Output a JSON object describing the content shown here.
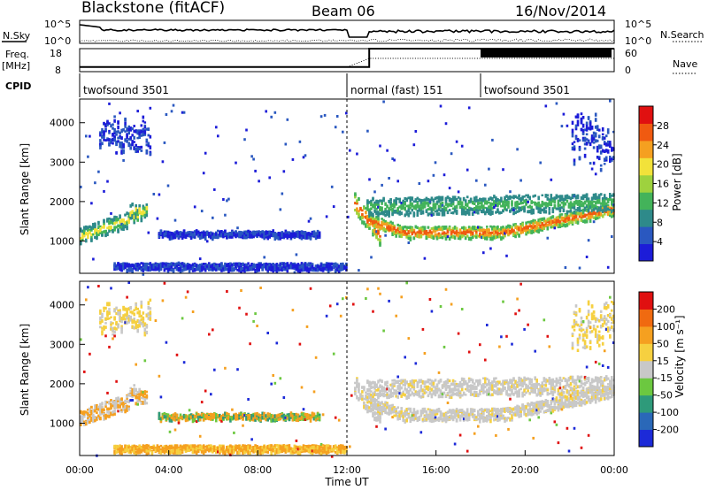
{
  "header": {
    "station": "Blackstone (fitACF)",
    "beam": "Beam 06",
    "date": "16/Nov/2014"
  },
  "labels": {
    "nsky": "N.Sky",
    "nsearch": "N.Search",
    "freq": "Freq.",
    "freq_unit": "[MHz]",
    "nave": "Nave",
    "cpid": "CPID",
    "slant_range": "Slant Range [km]",
    "time_axis": "Time UT",
    "power_label": "Power [dB]",
    "velocity_label": "Velocity [m s⁻¹]"
  },
  "cpid_segments": [
    {
      "name": "twofsound 3501",
      "start_h": 0,
      "end_h": 12
    },
    {
      "name": "normal (fast) 151",
      "start_h": 12,
      "end_h": 18
    },
    {
      "name": "twofsound 3501",
      "start_h": 18,
      "end_h": 24
    }
  ],
  "noise_panel": {
    "left_ticks": [
      "10^5",
      "10^0"
    ],
    "right_ticks": [
      "10^5",
      "10^0"
    ]
  },
  "freq_panel": {
    "left_ticks": [
      18,
      8
    ],
    "right_ticks": [
      60,
      0
    ],
    "frequency_mhz": [
      {
        "start_h": 0,
        "end_h": 13,
        "value": 10
      },
      {
        "start_h": 13,
        "end_h": 24,
        "value": 18
      }
    ]
  },
  "chart_data": [
    {
      "type": "heatmap",
      "quantity": "Power",
      "x_range_h": [
        0,
        24
      ],
      "y_range_km": [
        180,
        4600
      ],
      "yticks": [
        1000,
        2000,
        3000,
        4000
      ],
      "xticks": [
        "00:00",
        "04:00",
        "08:00",
        "12:00",
        "16:00",
        "20:00",
        "00:00"
      ],
      "colorbar": {
        "ticks": [
          4,
          8,
          12,
          16,
          20,
          24,
          28
        ],
        "range": [
          0,
          32
        ],
        "colors": [
          "#1c1cd8",
          "#2a58c0",
          "#2e8a8a",
          "#43b35a",
          "#9ed23e",
          "#f2e23a",
          "#f5a020",
          "#f05a10",
          "#e01010"
        ]
      }
    },
    {
      "type": "heatmap",
      "quantity": "Velocity",
      "x_range_h": [
        0,
        24
      ],
      "y_range_km": [
        180,
        4600
      ],
      "yticks": [
        1000,
        2000,
        3000,
        4000
      ],
      "xticks": [
        "00:00",
        "04:00",
        "08:00",
        "12:00",
        "16:00",
        "20:00",
        "00:00"
      ],
      "colorbar": {
        "ticks": [
          "200",
          "100",
          "50",
          "15",
          "-15",
          "-50",
          "-100",
          "-200"
        ],
        "colors": [
          "#1c2ad8",
          "#2a68b8",
          "#2e9a7a",
          "#6cc840",
          "#c8c8c8",
          "#f6d040",
          "#f5a020",
          "#f06a10",
          "#e01010"
        ]
      }
    }
  ]
}
